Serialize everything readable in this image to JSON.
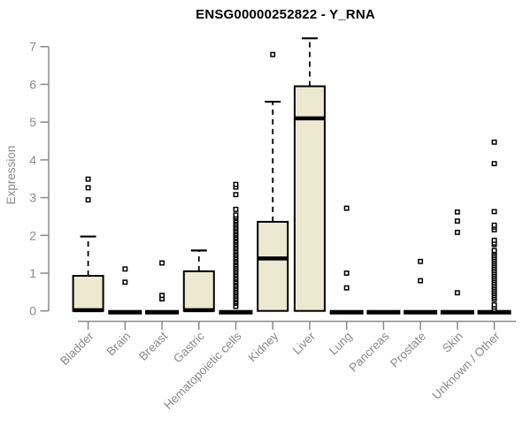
{
  "chart_data": {
    "type": "boxplot",
    "title": "ENSG00000252822 - Y_RNA",
    "ylabel": "Expression",
    "xlabel": "",
    "ylim": [
      0,
      7.3
    ],
    "yticks": [
      0,
      1,
      2,
      3,
      4,
      5,
      6,
      7
    ],
    "grid": false,
    "legend": "none",
    "box_fill": "#EDE8D0",
    "box_stroke": "#000000",
    "axis_color": "#8a8a8a",
    "categories": [
      "Bladder",
      "Brain",
      "Breast",
      "Gastric",
      "Hematopoietic cells",
      "Kidney",
      "Liver",
      "Lung",
      "Pancreas",
      "Prostate",
      "Skin",
      "Unknown / Other"
    ],
    "series": [
      {
        "category": "Bladder",
        "q1": 0,
        "median": 0.02,
        "q3": 0.93,
        "whisker_low": 0,
        "whisker_high": 1.97,
        "outliers": [
          2.94,
          3.26,
          3.49
        ]
      },
      {
        "category": "Brain",
        "q1": 0,
        "median": 0,
        "q3": 0,
        "whisker_low": 0,
        "whisker_high": 0,
        "outliers": [
          0.76,
          1.11
        ]
      },
      {
        "category": "Breast",
        "q1": 0,
        "median": 0,
        "q3": 0,
        "whisker_low": 0,
        "whisker_high": 0,
        "outliers": [
          0.32,
          0.41,
          1.27
        ]
      },
      {
        "category": "Gastric",
        "q1": 0,
        "median": 0.02,
        "q3": 1.05,
        "whisker_low": 0,
        "whisker_high": 1.6,
        "outliers": []
      },
      {
        "category": "Hematopoietic cells",
        "q1": 0,
        "median": 0,
        "q3": 0,
        "whisker_low": 0,
        "whisker_high": 0,
        "outliers": [
          0.12,
          0.2,
          0.24,
          0.29,
          0.33,
          0.38,
          0.42,
          0.47,
          0.51,
          0.56,
          0.6,
          0.65,
          0.69,
          0.74,
          0.78,
          0.83,
          0.87,
          0.92,
          0.96,
          1.01,
          1.05,
          1.1,
          1.14,
          1.19,
          1.23,
          1.28,
          1.32,
          1.37,
          1.41,
          1.46,
          1.5,
          1.55,
          1.59,
          1.64,
          1.68,
          1.73,
          1.77,
          1.82,
          1.86,
          1.91,
          1.95,
          2.0,
          2.04,
          2.09,
          2.13,
          2.18,
          2.22,
          2.27,
          2.31,
          2.36,
          2.4,
          2.45,
          2.49,
          2.54,
          2.69,
          3.08,
          3.28,
          3.35
        ]
      },
      {
        "category": "Kidney",
        "q1": 0,
        "median": 1.39,
        "q3": 2.36,
        "whisker_low": 0,
        "whisker_high": 5.54,
        "outliers": [
          6.79
        ]
      },
      {
        "category": "Liver",
        "q1": 0,
        "median": 5.1,
        "q3": 5.95,
        "whisker_low": 0,
        "whisker_high": 7.22,
        "outliers": []
      },
      {
        "category": "Lung",
        "q1": 0,
        "median": 0,
        "q3": 0,
        "whisker_low": 0,
        "whisker_high": 0,
        "outliers": [
          0.61,
          1.0,
          2.72
        ]
      },
      {
        "category": "Pancreas",
        "q1": 0,
        "median": 0,
        "q3": 0,
        "whisker_low": 0,
        "whisker_high": 0,
        "outliers": []
      },
      {
        "category": "Prostate",
        "q1": 0,
        "median": 0,
        "q3": 0,
        "whisker_low": 0,
        "whisker_high": 0,
        "outliers": [
          0.8,
          1.31
        ]
      },
      {
        "category": "Skin",
        "q1": 0,
        "median": 0,
        "q3": 0,
        "whisker_low": 0,
        "whisker_high": 0,
        "outliers": [
          0.48,
          2.08,
          2.38,
          2.62
        ]
      },
      {
        "category": "Unknown / Other",
        "q1": 0,
        "median": 0,
        "q3": 0,
        "whisker_low": 0,
        "whisker_high": 0,
        "outliers": [
          0.04,
          0.1,
          0.16,
          0.31,
          0.36,
          0.41,
          0.46,
          0.51,
          0.56,
          0.61,
          0.66,
          0.71,
          0.76,
          0.81,
          0.86,
          0.91,
          0.96,
          1.01,
          1.06,
          1.11,
          1.16,
          1.21,
          1.26,
          1.31,
          1.36,
          1.41,
          1.46,
          1.51,
          1.56,
          1.6,
          1.76,
          1.8,
          1.87,
          2.15,
          2.22,
          2.27,
          2.63,
          3.9,
          4.47
        ]
      }
    ]
  }
}
